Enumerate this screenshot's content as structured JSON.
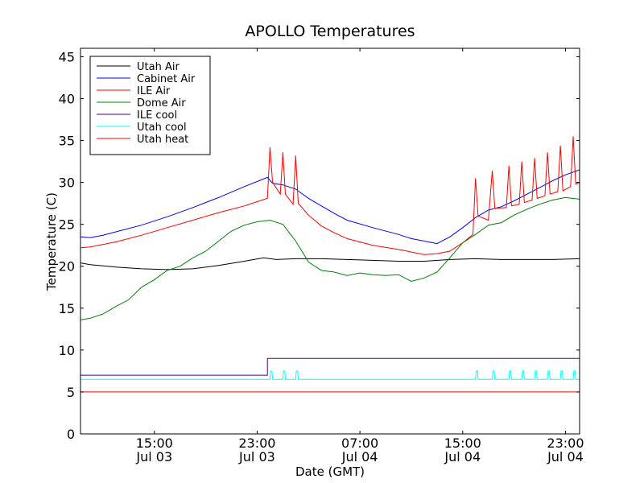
{
  "chart_data": {
    "type": "line",
    "title": "APOLLO Temperatures",
    "xlabel": "Date (GMT)",
    "ylabel": "Temperature (C)",
    "xunit": "hours since Jul 03 00:00 GMT",
    "xlim": [
      9.25,
      48.1
    ],
    "ylim": [
      0,
      46
    ],
    "yticks": [
      0,
      5,
      10,
      15,
      20,
      25,
      30,
      35,
      40,
      45
    ],
    "xticks": [
      {
        "x": 15,
        "line1": "15:00",
        "line2": "Jul 03"
      },
      {
        "x": 23,
        "line1": "23:00",
        "line2": "Jul 03"
      },
      {
        "x": 31,
        "line1": "07:00",
        "line2": "Jul 04"
      },
      {
        "x": 39,
        "line1": "15:00",
        "line2": "Jul 04"
      },
      {
        "x": 47,
        "line1": "23:00",
        "line2": "Jul 04"
      }
    ],
    "legend_position": "top-left",
    "series": [
      {
        "name": "Utah Air",
        "color": "#000000",
        "points": [
          [
            9.25,
            20.4
          ],
          [
            10,
            20.2
          ],
          [
            12,
            19.9
          ],
          [
            14,
            19.7
          ],
          [
            16,
            19.6
          ],
          [
            18,
            19.7
          ],
          [
            20,
            20.1
          ],
          [
            22,
            20.6
          ],
          [
            23.5,
            21.0
          ],
          [
            24.5,
            20.8
          ],
          [
            26,
            20.9
          ],
          [
            28,
            20.9
          ],
          [
            30,
            20.8
          ],
          [
            32,
            20.7
          ],
          [
            34,
            20.6
          ],
          [
            36,
            20.6
          ],
          [
            38,
            20.8
          ],
          [
            40,
            20.9
          ],
          [
            42,
            20.8
          ],
          [
            44,
            20.8
          ],
          [
            46,
            20.8
          ],
          [
            48.1,
            20.9
          ]
        ]
      },
      {
        "name": "Cabinet Air",
        "color": "#0000ff",
        "points": [
          [
            9.25,
            23.5
          ],
          [
            10,
            23.4
          ],
          [
            11,
            23.7
          ],
          [
            12,
            24.1
          ],
          [
            14,
            24.9
          ],
          [
            16,
            25.9
          ],
          [
            18,
            27.0
          ],
          [
            20,
            28.2
          ],
          [
            22,
            29.5
          ],
          [
            23.8,
            30.6
          ],
          [
            24.2,
            29.9
          ],
          [
            25,
            29.7
          ],
          [
            26,
            29.2
          ],
          [
            27,
            28.1
          ],
          [
            28,
            27.2
          ],
          [
            29,
            26.3
          ],
          [
            30,
            25.5
          ],
          [
            32,
            24.6
          ],
          [
            34,
            23.8
          ],
          [
            35,
            23.3
          ],
          [
            36,
            23.0
          ],
          [
            37,
            22.7
          ],
          [
            38,
            23.5
          ],
          [
            39,
            24.6
          ],
          [
            40,
            25.8
          ],
          [
            41,
            26.7
          ],
          [
            42,
            27.1
          ],
          [
            43,
            27.8
          ],
          [
            44,
            28.6
          ],
          [
            45,
            29.4
          ],
          [
            46,
            30.2
          ],
          [
            47,
            30.9
          ],
          [
            48.1,
            31.5
          ]
        ]
      },
      {
        "name": "ILE Air",
        "color": "#ff0000",
        "points": [
          [
            9.25,
            22.2
          ],
          [
            10,
            22.3
          ],
          [
            12,
            22.9
          ],
          [
            14,
            23.7
          ],
          [
            16,
            24.6
          ],
          [
            18,
            25.5
          ],
          [
            20,
            26.4
          ],
          [
            22,
            27.2
          ],
          [
            23.8,
            28.1
          ],
          [
            24.0,
            34.2
          ],
          [
            24.2,
            30.0
          ],
          [
            24.8,
            28.6
          ],
          [
            25.0,
            33.6
          ],
          [
            25.2,
            28.6
          ],
          [
            25.8,
            27.4
          ],
          [
            26.0,
            33.2
          ],
          [
            26.2,
            27.5
          ],
          [
            27,
            26.1
          ],
          [
            28,
            24.8
          ],
          [
            29,
            24.0
          ],
          [
            30,
            23.3
          ],
          [
            32,
            22.5
          ],
          [
            34,
            22.0
          ],
          [
            36,
            21.4
          ],
          [
            37,
            21.5
          ],
          [
            38,
            21.8
          ],
          [
            39,
            22.8
          ],
          [
            39.8,
            23.8
          ],
          [
            40.0,
            30.5
          ],
          [
            40.2,
            26.0
          ],
          [
            41.0,
            25.5
          ],
          [
            41.3,
            31.4
          ],
          [
            41.5,
            26.9
          ],
          [
            42.4,
            27.0
          ],
          [
            42.6,
            32.0
          ],
          [
            42.8,
            27.2
          ],
          [
            43.4,
            27.4
          ],
          [
            43.6,
            32.5
          ],
          [
            43.8,
            27.6
          ],
          [
            44.4,
            27.9
          ],
          [
            44.6,
            32.9
          ],
          [
            44.8,
            28.1
          ],
          [
            45.4,
            28.4
          ],
          [
            45.6,
            33.6
          ],
          [
            45.8,
            28.6
          ],
          [
            46.4,
            28.9
          ],
          [
            46.6,
            34.4
          ],
          [
            46.8,
            29.0
          ],
          [
            47.4,
            29.5
          ],
          [
            47.6,
            35.5
          ],
          [
            47.8,
            29.8
          ],
          [
            48.1,
            30.0
          ]
        ]
      },
      {
        "name": "Dome Air",
        "color": "#008000",
        "points": [
          [
            9.25,
            13.6
          ],
          [
            10,
            13.8
          ],
          [
            11,
            14.3
          ],
          [
            12,
            15.2
          ],
          [
            13,
            16.0
          ],
          [
            14,
            17.5
          ],
          [
            15,
            18.4
          ],
          [
            16,
            19.5
          ],
          [
            17,
            20.0
          ],
          [
            18,
            21.0
          ],
          [
            19,
            21.8
          ],
          [
            20,
            23.0
          ],
          [
            21,
            24.2
          ],
          [
            22,
            24.9
          ],
          [
            23,
            25.3
          ],
          [
            24,
            25.5
          ],
          [
            25,
            25.0
          ],
          [
            26,
            23.0
          ],
          [
            27,
            20.5
          ],
          [
            28,
            19.5
          ],
          [
            29,
            19.3
          ],
          [
            30,
            18.9
          ],
          [
            31,
            19.2
          ],
          [
            32,
            19.0
          ],
          [
            33,
            18.9
          ],
          [
            34,
            19.0
          ],
          [
            35,
            18.2
          ],
          [
            36,
            18.6
          ],
          [
            37,
            19.3
          ],
          [
            38,
            21.0
          ],
          [
            39,
            22.8
          ],
          [
            40,
            23.8
          ],
          [
            41,
            24.9
          ],
          [
            42,
            25.2
          ],
          [
            43,
            26.1
          ],
          [
            44,
            26.8
          ],
          [
            45,
            27.4
          ],
          [
            46,
            27.9
          ],
          [
            47,
            28.2
          ],
          [
            48.1,
            28.0
          ]
        ]
      },
      {
        "name": "ILE cool",
        "color": "#4b0082",
        "points": [
          [
            9.25,
            7.0
          ],
          [
            23.8,
            7.0
          ],
          [
            23.8,
            9.0
          ],
          [
            48.1,
            9.0
          ]
        ]
      },
      {
        "name": "Utah cool",
        "color": "#00ffff",
        "points": [
          [
            9.25,
            6.5
          ],
          [
            24.0,
            6.5
          ],
          [
            24.05,
            7.5
          ],
          [
            24.15,
            7.5
          ],
          [
            24.2,
            6.5
          ],
          [
            25.0,
            6.5
          ],
          [
            25.05,
            7.5
          ],
          [
            25.15,
            7.5
          ],
          [
            25.2,
            6.5
          ],
          [
            26.0,
            6.5
          ],
          [
            26.05,
            7.5
          ],
          [
            26.15,
            7.5
          ],
          [
            26.2,
            6.5
          ],
          [
            40.0,
            6.5
          ],
          [
            40.05,
            7.5
          ],
          [
            40.15,
            7.5
          ],
          [
            40.2,
            6.5
          ],
          [
            41.3,
            6.5
          ],
          [
            41.35,
            7.5
          ],
          [
            41.45,
            7.5
          ],
          [
            41.5,
            6.5
          ],
          [
            42.6,
            6.5
          ],
          [
            42.65,
            7.5
          ],
          [
            42.75,
            7.5
          ],
          [
            42.8,
            6.5
          ],
          [
            43.6,
            6.5
          ],
          [
            43.65,
            7.5
          ],
          [
            43.75,
            7.5
          ],
          [
            43.8,
            6.5
          ],
          [
            44.6,
            6.5
          ],
          [
            44.65,
            7.5
          ],
          [
            44.75,
            7.5
          ],
          [
            44.8,
            6.5
          ],
          [
            45.6,
            6.5
          ],
          [
            45.65,
            7.5
          ],
          [
            45.75,
            7.5
          ],
          [
            45.8,
            6.5
          ],
          [
            46.6,
            6.5
          ],
          [
            46.65,
            7.5
          ],
          [
            46.75,
            7.5
          ],
          [
            46.8,
            6.5
          ],
          [
            47.6,
            6.5
          ],
          [
            47.65,
            7.5
          ],
          [
            47.75,
            7.5
          ],
          [
            47.8,
            6.5
          ],
          [
            48.1,
            6.5
          ]
        ]
      },
      {
        "name": "Utah heat",
        "color": "#ff0000",
        "points": [
          [
            9.25,
            5.0
          ],
          [
            48.1,
            5.0
          ]
        ]
      }
    ]
  }
}
